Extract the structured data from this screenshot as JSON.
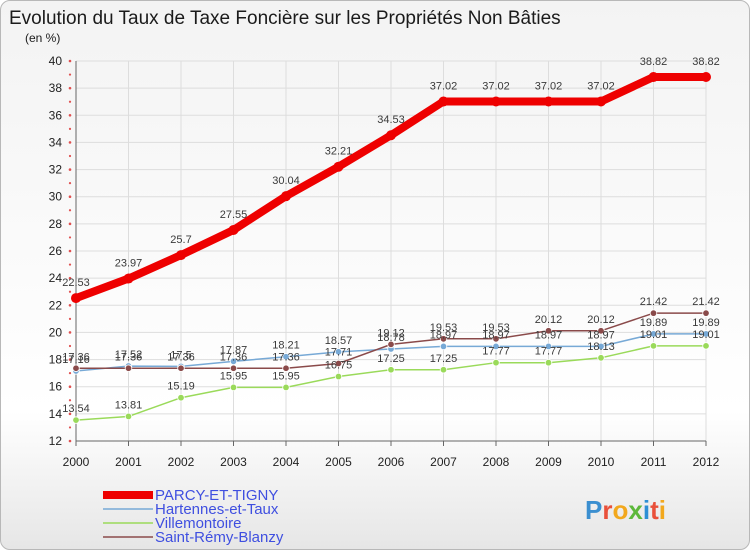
{
  "chart_data": {
    "type": "line",
    "title": "Evolution du Taux de Taxe Foncière sur les Propriétés Non Bâties",
    "subtitle": "(en %)",
    "xlabel": "",
    "ylabel": "",
    "categories": [
      "2000",
      "2001",
      "2002",
      "2003",
      "2004",
      "2005",
      "2006",
      "2007",
      "2008",
      "2009",
      "2010",
      "2011",
      "2012"
    ],
    "ylim": [
      12,
      40
    ],
    "yticks": [
      "12",
      "14",
      "16",
      "18",
      "20",
      "22",
      "24",
      "26",
      "28",
      "30",
      "32",
      "34",
      "36",
      "38",
      "40"
    ],
    "grid": true,
    "legend_position": "bottom-left",
    "series": [
      {
        "name": "PARCY-ET-TIGNY",
        "color": "#ee0000",
        "values": [
          22.53,
          23.97,
          25.7,
          27.55,
          30.04,
          32.21,
          34.53,
          37.02,
          37.02,
          37.02,
          37.02,
          38.82,
          38.82
        ],
        "labels": [
          "22.53",
          "23.97",
          "25.7",
          "27.55",
          "30.04",
          "32.21",
          "34.53",
          "37.02",
          "37.02",
          "37.02",
          "37.02",
          "38.82",
          "38.82"
        ]
      },
      {
        "name": "Hartennes-et-Taux",
        "color": "#77a9d6",
        "values": [
          17.16,
          17.52,
          17.5,
          17.87,
          18.21,
          18.57,
          18.78,
          18.97,
          18.97,
          18.97,
          18.97,
          19.89,
          19.89
        ],
        "labels": [
          "17.16",
          "17.52",
          "17.5",
          "17.87",
          "18.21",
          "18.57",
          "18.78",
          "18.97",
          "18.97",
          "18.97",
          "18.97",
          "19.89",
          "19.89"
        ]
      },
      {
        "name": "Villemontoire",
        "color": "#9ada5a",
        "values": [
          13.54,
          13.81,
          15.19,
          15.95,
          15.95,
          16.75,
          17.25,
          17.25,
          17.77,
          17.77,
          18.13,
          19.01,
          19.01
        ],
        "labels": [
          "13.54",
          "13.81",
          "15.19",
          "15.95",
          "15.95",
          "16.75",
          "17.25",
          "17.25",
          "17.77",
          "17.77",
          "18.13",
          "19.01",
          "19.01"
        ]
      },
      {
        "name": "Saint-Rémy-Blanzy",
        "color": "#8a4a4a",
        "values": [
          17.36,
          17.36,
          17.36,
          17.36,
          17.36,
          17.71,
          19.12,
          19.53,
          19.53,
          20.12,
          20.12,
          21.42,
          21.42
        ],
        "labels": [
          "17.36",
          "17.36",
          "17.36",
          "17.36",
          "17.36",
          "17.71",
          "19.12",
          "19.53",
          "19.53",
          "20.12",
          "20.12",
          "21.42",
          "21.42"
        ]
      }
    ]
  },
  "logo": {
    "chars": [
      {
        "char": "P",
        "color": "#3b8fd0"
      },
      {
        "char": "r",
        "color": "#e9503a"
      },
      {
        "char": "o",
        "color": "#f2a81d"
      },
      {
        "char": "x",
        "color": "#5cb83a"
      },
      {
        "char": "i",
        "color": "#2d8fd5"
      },
      {
        "char": "t",
        "color": "#e9503a"
      },
      {
        "char": "i",
        "color": "#f2a81d"
      }
    ]
  },
  "colors": {
    "legend_text": "#3f4fe0",
    "grid": "#dddddd",
    "axis": "#666666",
    "tick_dot": "#e05050"
  }
}
